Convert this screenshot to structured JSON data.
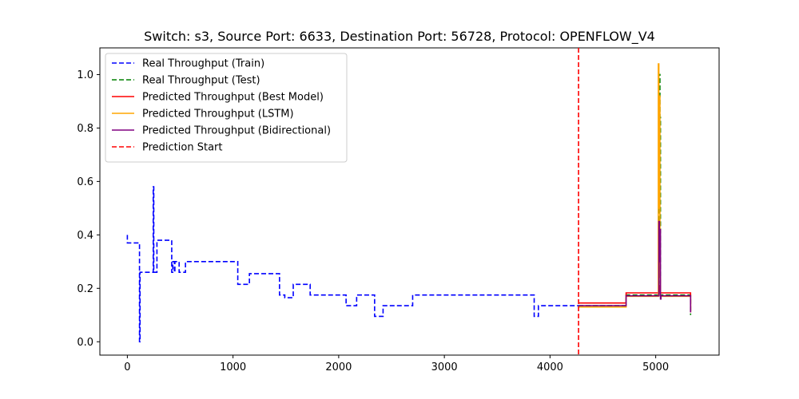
{
  "chart_data": {
    "type": "line",
    "title": "Switch: s3, Source Port: 6633, Destination Port: 56728, Protocol: OPENFLOW_V4",
    "xlabel": "",
    "ylabel": "",
    "xlim": [
      -260,
      5600
    ],
    "ylim": [
      -0.05,
      1.1
    ],
    "x_ticks": [
      0,
      1000,
      2000,
      3000,
      4000,
      5000
    ],
    "y_ticks": [
      0.0,
      0.2,
      0.4,
      0.6,
      0.8,
      1.0
    ],
    "grid": false,
    "legend_position": "top-left",
    "prediction_start_x": 4270,
    "series": [
      {
        "name": "Real Throughput (Train)",
        "color": "#0000ff",
        "line_style": "dashed",
        "step": true,
        "points": [
          [
            0,
            0.4
          ],
          [
            0,
            0.37
          ],
          [
            110,
            0.37
          ],
          [
            115,
            0.0
          ],
          [
            120,
            0.26
          ],
          [
            240,
            0.26
          ],
          [
            245,
            0.58
          ],
          [
            250,
            0.26
          ],
          [
            270,
            0.26
          ],
          [
            280,
            0.38
          ],
          [
            410,
            0.38
          ],
          [
            420,
            0.26
          ],
          [
            430,
            0.3
          ],
          [
            445,
            0.26
          ],
          [
            450,
            0.3
          ],
          [
            480,
            0.3
          ],
          [
            490,
            0.26
          ],
          [
            540,
            0.26
          ],
          [
            550,
            0.3
          ],
          [
            1040,
            0.3
          ],
          [
            1045,
            0.215
          ],
          [
            1150,
            0.215
          ],
          [
            1155,
            0.255
          ],
          [
            1430,
            0.255
          ],
          [
            1440,
            0.175
          ],
          [
            1480,
            0.175
          ],
          [
            1490,
            0.165
          ],
          [
            1560,
            0.165
          ],
          [
            1570,
            0.215
          ],
          [
            1720,
            0.215
          ],
          [
            1730,
            0.175
          ],
          [
            2060,
            0.175
          ],
          [
            2070,
            0.135
          ],
          [
            2160,
            0.135
          ],
          [
            2170,
            0.175
          ],
          [
            2330,
            0.175
          ],
          [
            2340,
            0.095
          ],
          [
            2410,
            0.095
          ],
          [
            2420,
            0.135
          ],
          [
            2690,
            0.135
          ],
          [
            2700,
            0.175
          ],
          [
            3840,
            0.175
          ],
          [
            3850,
            0.095
          ],
          [
            3880,
            0.095
          ],
          [
            3890,
            0.135
          ],
          [
            4270,
            0.135
          ]
        ]
      },
      {
        "name": "Real Throughput (Test)",
        "color": "#008000",
        "line_style": "dashed",
        "step": true,
        "points": [
          [
            4270,
            0.135
          ],
          [
            4720,
            0.135
          ],
          [
            4720,
            0.175
          ],
          [
            5020,
            0.175
          ],
          [
            5030,
            1.0
          ],
          [
            5040,
            0.84
          ],
          [
            5045,
            0.175
          ],
          [
            5330,
            0.175
          ],
          [
            5330,
            0.1
          ]
        ]
      },
      {
        "name": "Predicted Throughput (Best Model)",
        "color": "#ff0000",
        "line_style": "solid",
        "step": true,
        "points": [
          [
            4270,
            0.145
          ],
          [
            4720,
            0.145
          ],
          [
            4720,
            0.183
          ],
          [
            5030,
            0.183
          ],
          [
            5035,
            0.21
          ],
          [
            5045,
            0.183
          ],
          [
            5330,
            0.183
          ],
          [
            5330,
            0.11
          ]
        ]
      },
      {
        "name": "Predicted Throughput (LSTM)",
        "color": "#ffa500",
        "line_style": "solid",
        "step": true,
        "points": [
          [
            4270,
            0.13
          ],
          [
            4720,
            0.13
          ],
          [
            4720,
            0.17
          ],
          [
            5020,
            0.17
          ],
          [
            5025,
            1.04
          ],
          [
            5030,
            0.5
          ],
          [
            5035,
            0.92
          ],
          [
            5040,
            0.24
          ],
          [
            5045,
            0.17
          ],
          [
            5330,
            0.17
          ],
          [
            5330,
            0.11
          ]
        ]
      },
      {
        "name": "Predicted Throughput (Bidirectional)",
        "color": "#800080",
        "line_style": "solid",
        "step": true,
        "points": [
          [
            4270,
            0.135
          ],
          [
            4720,
            0.135
          ],
          [
            4720,
            0.172
          ],
          [
            5025,
            0.172
          ],
          [
            5030,
            0.45
          ],
          [
            5035,
            0.3
          ],
          [
            5040,
            0.42
          ],
          [
            5045,
            0.16
          ],
          [
            5050,
            0.172
          ],
          [
            5330,
            0.172
          ],
          [
            5330,
            0.11
          ]
        ]
      },
      {
        "name": "Prediction Start",
        "color": "#ff0000",
        "line_style": "dashed",
        "vertical_line_x": 4270
      }
    ]
  }
}
